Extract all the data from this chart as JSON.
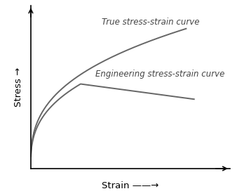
{
  "background_color": "#ffffff",
  "curve_color": "#666666",
  "line_width": 1.4,
  "text_color": "#444444",
  "true_label": "True stress-strain curve",
  "eng_label": "Engineering stress-strain curve",
  "xlabel": "Strain ——→",
  "ylabel": "Stress →",
  "font_size_curves": 8.5,
  "font_size_axes": 9.5,
  "xlim": [
    0,
    1
  ],
  "ylim": [
    0,
    1
  ]
}
